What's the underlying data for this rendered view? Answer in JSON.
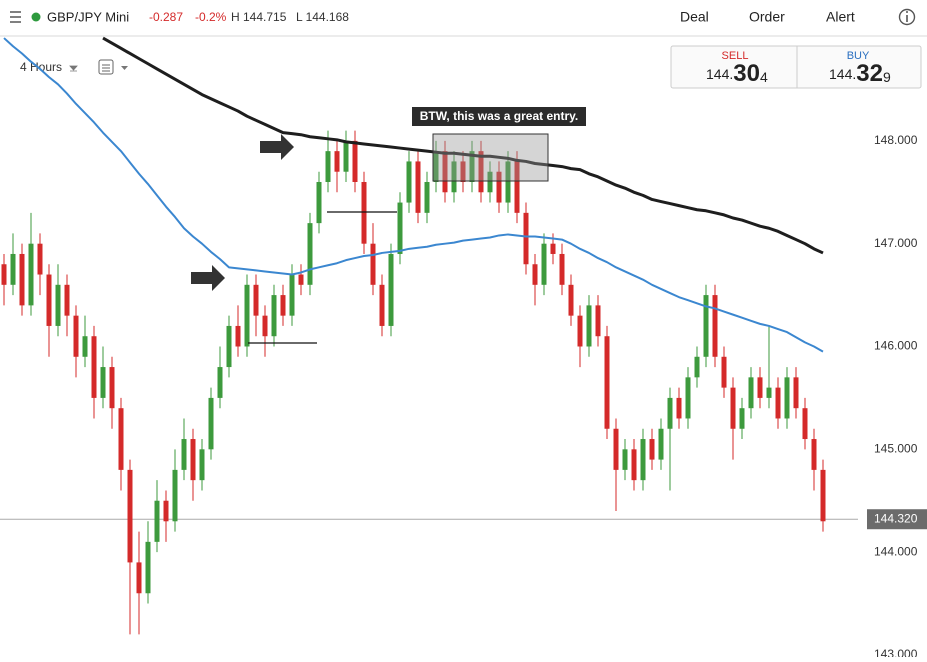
{
  "header": {
    "instrument": "GBP/JPY Mini",
    "change": "-0.287",
    "change_pct": "-0.2%",
    "high": "H 144.715",
    "low": "L 144.168",
    "menu": [
      "Deal",
      "Order",
      "Alert"
    ]
  },
  "toolbar": {
    "timeframe": "4 Hours"
  },
  "quote": {
    "sell_label": "SELL",
    "sell_big": "144.",
    "sell_main": "30",
    "sell_pip": "4",
    "buy_label": "BUY",
    "buy_big": "144.",
    "buy_main": "32",
    "buy_pip": "9"
  },
  "chart_data": {
    "type": "candlestick",
    "annotation": "BTW, this was a great entry.",
    "ylim": [
      142.98,
      149.02
    ],
    "yticks": [
      {
        "value": 143,
        "label": "143.000"
      },
      {
        "value": 144,
        "label": "144.000"
      },
      {
        "value": 145,
        "label": "145.000"
      },
      {
        "value": 146,
        "label": "146.000"
      },
      {
        "value": 147,
        "label": "147.000"
      },
      {
        "value": 148,
        "label": "148.000"
      }
    ],
    "price_line": {
      "value": 144.32,
      "label": "144.320"
    },
    "up_color": "#3d9a3d",
    "down_color": "#d42a2a",
    "ohlc": [
      [
        146.8,
        146.9,
        146.4,
        146.6
      ],
      [
        146.6,
        147.1,
        146.5,
        146.9
      ],
      [
        146.9,
        147.0,
        146.3,
        146.4
      ],
      [
        146.4,
        147.3,
        146.3,
        147.0
      ],
      [
        147.0,
        147.1,
        146.5,
        146.7
      ],
      [
        146.7,
        146.8,
        145.9,
        146.2
      ],
      [
        146.2,
        146.8,
        146.1,
        146.6
      ],
      [
        146.6,
        146.7,
        146.1,
        146.3
      ],
      [
        146.3,
        146.4,
        145.7,
        145.9
      ],
      [
        145.9,
        146.3,
        145.8,
        146.1
      ],
      [
        146.1,
        146.2,
        145.3,
        145.5
      ],
      [
        145.5,
        146.0,
        145.4,
        145.8
      ],
      [
        145.8,
        145.9,
        145.2,
        145.4
      ],
      [
        145.4,
        145.5,
        144.6,
        144.8
      ],
      [
        144.8,
        144.9,
        143.2,
        143.9
      ],
      [
        143.9,
        144.2,
        143.2,
        143.6
      ],
      [
        143.6,
        144.3,
        143.5,
        144.1
      ],
      [
        144.1,
        144.7,
        144.0,
        144.5
      ],
      [
        144.5,
        144.6,
        144.1,
        144.3
      ],
      [
        144.3,
        145.0,
        144.2,
        144.8
      ],
      [
        144.8,
        145.3,
        144.7,
        145.1
      ],
      [
        145.1,
        145.2,
        144.5,
        144.7
      ],
      [
        144.7,
        145.1,
        144.6,
        145.0
      ],
      [
        145.0,
        145.6,
        144.9,
        145.5
      ],
      [
        145.5,
        146.0,
        145.4,
        145.8
      ],
      [
        145.8,
        146.3,
        145.7,
        146.2
      ],
      [
        146.2,
        146.4,
        145.9,
        146.0
      ],
      [
        146.0,
        146.7,
        145.9,
        146.6
      ],
      [
        146.6,
        146.7,
        146.1,
        146.3
      ],
      [
        146.3,
        146.4,
        145.9,
        146.1
      ],
      [
        146.1,
        146.6,
        146.0,
        146.5
      ],
      [
        146.5,
        146.6,
        146.2,
        146.3
      ],
      [
        146.3,
        146.8,
        146.2,
        146.7
      ],
      [
        146.7,
        146.8,
        146.5,
        146.6
      ],
      [
        146.6,
        147.3,
        146.5,
        147.2
      ],
      [
        147.2,
        147.7,
        147.1,
        147.6
      ],
      [
        147.6,
        148.1,
        147.5,
        147.9
      ],
      [
        147.9,
        148.0,
        147.5,
        147.7
      ],
      [
        147.7,
        148.1,
        147.6,
        148.0
      ],
      [
        148.0,
        148.1,
        147.5,
        147.6
      ],
      [
        147.6,
        147.7,
        146.9,
        147.0
      ],
      [
        147.0,
        147.2,
        146.5,
        146.6
      ],
      [
        146.6,
        146.7,
        146.1,
        146.2
      ],
      [
        146.2,
        147.0,
        146.1,
        146.9
      ],
      [
        146.9,
        147.5,
        146.8,
        147.4
      ],
      [
        147.4,
        147.9,
        147.3,
        147.8
      ],
      [
        147.8,
        147.9,
        147.2,
        147.3
      ],
      [
        147.3,
        147.7,
        147.2,
        147.6
      ],
      [
        147.6,
        148.0,
        147.5,
        147.9
      ],
      [
        147.9,
        148.0,
        147.4,
        147.5
      ],
      [
        147.5,
        147.9,
        147.4,
        147.8
      ],
      [
        147.8,
        147.9,
        147.5,
        147.6
      ],
      [
        147.6,
        148.0,
        147.5,
        147.9
      ],
      [
        147.9,
        148.0,
        147.4,
        147.5
      ],
      [
        147.5,
        147.8,
        147.4,
        147.7
      ],
      [
        147.7,
        147.8,
        147.3,
        147.4
      ],
      [
        147.4,
        147.9,
        147.3,
        147.8
      ],
      [
        147.8,
        147.9,
        147.2,
        147.3
      ],
      [
        147.3,
        147.4,
        146.7,
        146.8
      ],
      [
        146.8,
        146.9,
        146.4,
        146.6
      ],
      [
        146.6,
        147.1,
        146.5,
        147.0
      ],
      [
        147.0,
        147.1,
        146.8,
        146.9
      ],
      [
        146.9,
        147.0,
        146.5,
        146.6
      ],
      [
        146.6,
        146.7,
        146.2,
        146.3
      ],
      [
        146.3,
        146.4,
        145.8,
        146.0
      ],
      [
        146.0,
        146.5,
        145.9,
        146.4
      ],
      [
        146.4,
        146.5,
        146.0,
        146.1
      ],
      [
        146.1,
        146.2,
        145.1,
        145.2
      ],
      [
        145.2,
        145.3,
        144.4,
        144.8
      ],
      [
        144.8,
        145.1,
        144.7,
        145.0
      ],
      [
        145.0,
        145.1,
        144.6,
        144.7
      ],
      [
        144.7,
        145.2,
        144.6,
        145.1
      ],
      [
        145.1,
        145.2,
        144.8,
        144.9
      ],
      [
        144.9,
        145.3,
        144.8,
        145.2
      ],
      [
        145.2,
        145.6,
        144.6,
        145.5
      ],
      [
        145.5,
        145.6,
        145.2,
        145.3
      ],
      [
        145.3,
        145.8,
        145.2,
        145.7
      ],
      [
        145.7,
        146.0,
        145.6,
        145.9
      ],
      [
        145.9,
        146.6,
        145.8,
        146.5
      ],
      [
        146.5,
        146.6,
        145.8,
        145.9
      ],
      [
        145.9,
        146.0,
        145.5,
        145.6
      ],
      [
        145.6,
        145.7,
        144.9,
        145.2
      ],
      [
        145.2,
        145.5,
        145.1,
        145.4
      ],
      [
        145.4,
        145.8,
        145.3,
        145.7
      ],
      [
        145.7,
        145.8,
        145.4,
        145.5
      ],
      [
        145.5,
        146.2,
        145.4,
        145.6
      ],
      [
        145.6,
        145.7,
        145.2,
        145.3
      ],
      [
        145.3,
        145.8,
        145.2,
        145.7
      ],
      [
        145.7,
        145.8,
        145.3,
        145.4
      ],
      [
        145.4,
        145.5,
        145.0,
        145.1
      ],
      [
        145.1,
        145.2,
        144.6,
        144.8
      ],
      [
        144.8,
        144.9,
        144.2,
        144.3
      ]
    ],
    "moving_averages": [
      {
        "color": "#1e1e1e",
        "values": [
          null,
          null,
          null,
          null,
          null,
          null,
          null,
          null,
          null,
          null,
          null,
          149.0,
          148.95,
          148.9,
          148.85,
          148.8,
          148.75,
          148.7,
          148.65,
          148.6,
          148.55,
          148.5,
          148.45,
          148.41,
          148.37,
          148.33,
          148.29,
          148.24,
          148.2,
          148.16,
          148.12,
          148.08,
          148.07,
          148.06,
          148.04,
          148.03,
          148.02,
          148.01,
          147.99,
          147.98,
          147.97,
          147.96,
          147.95,
          147.94,
          147.93,
          147.92,
          147.91,
          147.9,
          147.89,
          147.88,
          147.88,
          147.87,
          147.86,
          147.85,
          147.85,
          147.84,
          147.83,
          147.81,
          147.8,
          147.78,
          147.77,
          147.76,
          147.75,
          147.73,
          147.72,
          147.68,
          147.65,
          147.61,
          147.57,
          147.54,
          147.5,
          147.47,
          147.43,
          147.41,
          147.39,
          147.37,
          147.35,
          147.33,
          147.32,
          147.3,
          147.28,
          147.25,
          147.23,
          147.2,
          147.17,
          147.15,
          147.12,
          147.08,
          147.04,
          147.0,
          146.95,
          146.91
        ]
      },
      {
        "color": "#3b87d0",
        "values": [
          149.0,
          148.92,
          148.85,
          148.77,
          148.7,
          148.62,
          148.55,
          148.46,
          148.36,
          148.27,
          148.18,
          148.08,
          147.99,
          147.9,
          147.79,
          147.68,
          147.58,
          147.47,
          147.36,
          147.26,
          147.15,
          147.07,
          147.0,
          146.92,
          146.85,
          146.77,
          146.76,
          146.75,
          146.74,
          146.73,
          146.72,
          146.71,
          146.7,
          146.72,
          146.75,
          146.77,
          146.79,
          146.81,
          146.84,
          146.86,
          146.88,
          146.89,
          146.91,
          146.92,
          146.93,
          146.95,
          146.96,
          146.97,
          146.99,
          147.0,
          147.01,
          147.03,
          147.04,
          147.05,
          147.06,
          147.08,
          147.09,
          147.08,
          147.07,
          147.07,
          147.06,
          147.05,
          147.04,
          147.0,
          146.95,
          146.91,
          146.86,
          146.82,
          146.77,
          146.73,
          146.69,
          146.65,
          146.6,
          146.56,
          146.52,
          146.48,
          146.45,
          146.42,
          146.39,
          146.37,
          146.34,
          146.31,
          146.28,
          146.25,
          146.22,
          146.2,
          146.17,
          146.14,
          146.09,
          146.04,
          146.0,
          145.95
        ]
      }
    ]
  }
}
